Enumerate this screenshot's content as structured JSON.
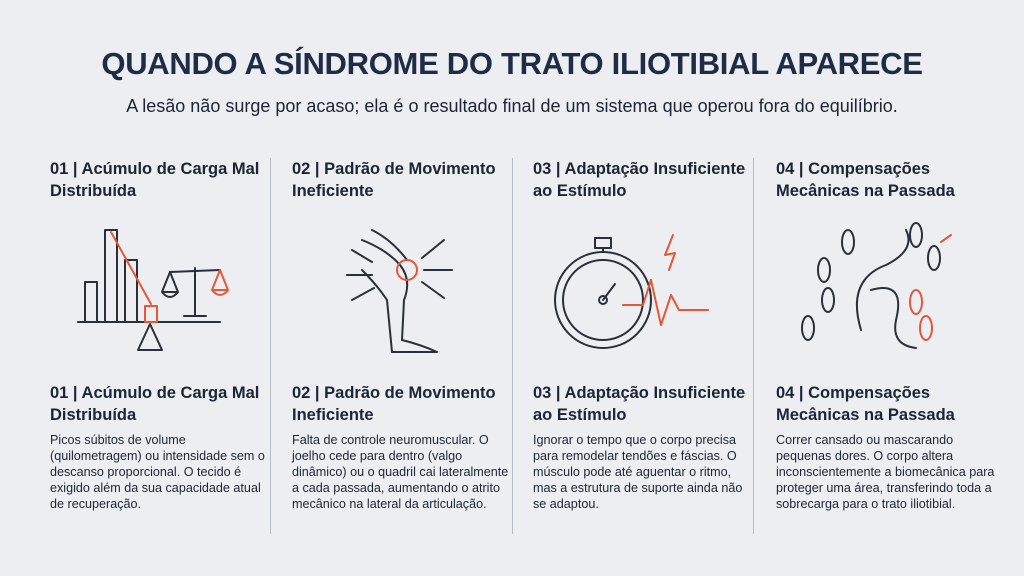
{
  "header": {
    "title": "QUANDO A SÍNDROME DO TRATO ILIOTIBIAL APARECE",
    "subtitle": "A lesão não surge por acaso; ela é o resultado final de um sistema que operou fora do equilíbrio."
  },
  "columns": [
    {
      "heading": "01 | Acúmulo de Carga Mal Distribuída",
      "subheading": "01 | Acúmulo de Carga Mal Distribuída",
      "body": "Picos súbitos de volume (quilometragem) ou intensidade sem o descanso proporcional. O tecido é exigido além da sua capacidade atual de recuperação."
    },
    {
      "heading": "02 | Padrão de Movimento Ineficiente",
      "subheading": "02 | Padrão de Movimento Ineficiente",
      "body": "Falta de controle neuromuscular. O joelho cede para dentro (valgo dinâmico) ou o quadril cai lateralmente a cada passada, aumentando o atrito mecânico na lateral da articulação."
    },
    {
      "heading": "03 | Adaptação Insuficiente ao Estímulo",
      "subheading": "03 | Adaptação Insuficiente ao Estímulo",
      "body": "Ignorar o tempo que o corpo precisa para remodelar tendões e fáscias. O músculo pode até aguentar o ritmo, mas a estrutura de suporte ainda não se adaptou."
    },
    {
      "heading": "04 | Compensações Mecânicas na Passada",
      "subheading": "04 | Compensações Mecânicas na Passada",
      "body": "Correr cansado ou mascarando pequenas dores. O corpo altera inconscientemente a biomecânica para proteger uma área, transferindo toda a sobrecarga para o trato iliotibial."
    }
  ]
}
